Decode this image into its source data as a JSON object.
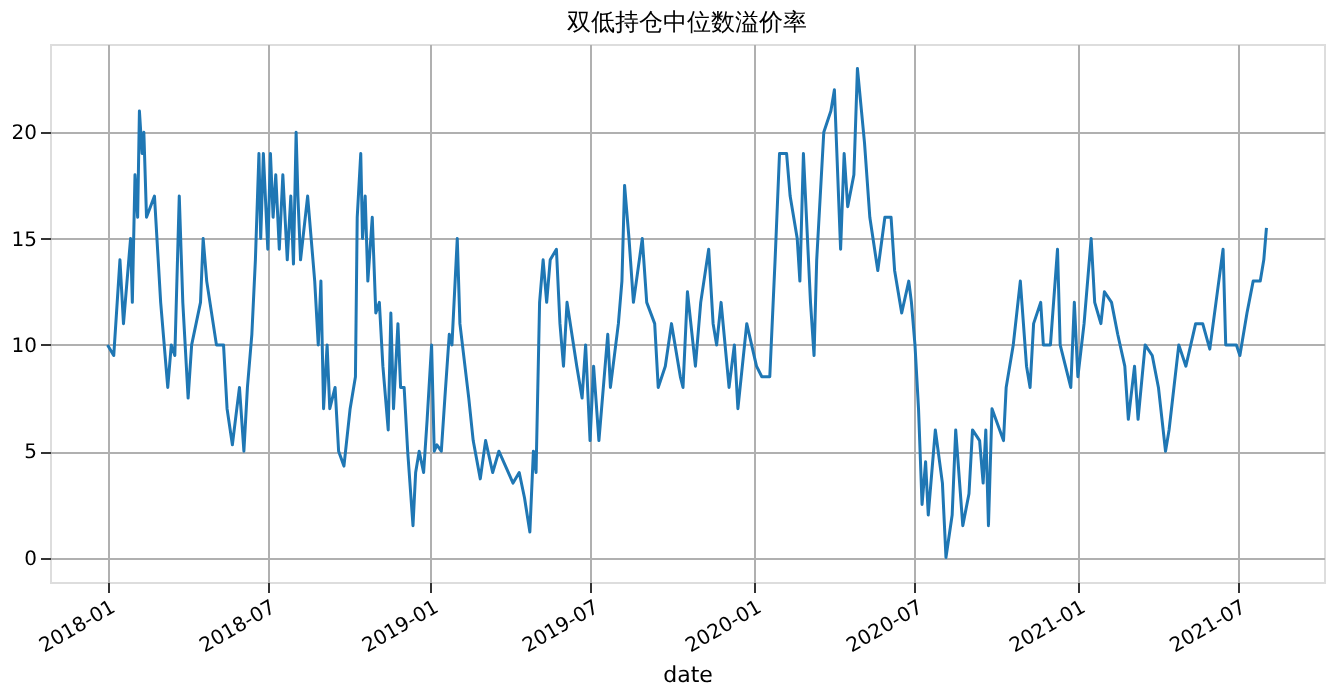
{
  "chart_data": {
    "type": "line",
    "title": "双低持仓中位数溢价率",
    "xlabel": "date",
    "xlim": [
      "2017-10-28",
      "2021-10-06"
    ],
    "ylim": [
      -1.15,
      24.15
    ],
    "xticks": [
      "2018-01",
      "2018-07",
      "2019-01",
      "2019-07",
      "2020-01",
      "2020-07",
      "2021-01",
      "2021-07"
    ],
    "yticks": [
      0,
      5,
      10,
      15,
      20
    ],
    "grid": true,
    "line_style": "solid",
    "marker": "none",
    "x": [
      "2018-01-01",
      "2018-01-08",
      "2018-01-15",
      "2018-01-19",
      "2018-01-27",
      "2018-01-29",
      "2018-02-01",
      "2018-02-04",
      "2018-02-06",
      "2018-02-09",
      "2018-02-11",
      "2018-02-14",
      "2018-02-23",
      "2018-03-02",
      "2018-03-10",
      "2018-03-14",
      "2018-03-18",
      "2018-03-23",
      "2018-03-27",
      "2018-04-02",
      "2018-04-06",
      "2018-04-16",
      "2018-04-19",
      "2018-04-23",
      "2018-05-04",
      "2018-05-12",
      "2018-05-16",
      "2018-05-22",
      "2018-05-27",
      "2018-05-30",
      "2018-06-04",
      "2018-06-08",
      "2018-06-13",
      "2018-06-17",
      "2018-06-21",
      "2018-06-23",
      "2018-06-26",
      "2018-07-01",
      "2018-07-04",
      "2018-07-07",
      "2018-07-10",
      "2018-07-14",
      "2018-07-18",
      "2018-07-23",
      "2018-07-27",
      "2018-07-30",
      "2018-08-02",
      "2018-08-04",
      "2018-08-07",
      "2018-08-15",
      "2018-08-23",
      "2018-08-27",
      "2018-08-30",
      "2018-09-02",
      "2018-09-06",
      "2018-09-09",
      "2018-09-15",
      "2018-09-19",
      "2018-09-25",
      "2018-10-02",
      "2018-10-08",
      "2018-10-10",
      "2018-10-14",
      "2018-10-16",
      "2018-10-19",
      "2018-10-22",
      "2018-10-27",
      "2018-10-31",
      "2018-11-04",
      "2018-11-08",
      "2018-11-14",
      "2018-11-17",
      "2018-11-20",
      "2018-11-25",
      "2018-11-28",
      "2018-12-02",
      "2018-12-06",
      "2018-12-12",
      "2018-12-15",
      "2018-12-19",
      "2018-12-24",
      "2018-12-28",
      "2019-01-02",
      "2019-01-05",
      "2019-01-08",
      "2019-01-13",
      "2019-01-17",
      "2019-01-22",
      "2019-01-25",
      "2019-01-31",
      "2019-02-03",
      "2019-02-13",
      "2019-02-18",
      "2019-02-26",
      "2019-03-04",
      "2019-03-12",
      "2019-03-19",
      "2019-04-04",
      "2019-04-11",
      "2019-04-17",
      "2019-04-23",
      "2019-04-27",
      "2019-04-30",
      "2019-05-04",
      "2019-05-08",
      "2019-05-12",
      "2019-05-16",
      "2019-05-23",
      "2019-05-27",
      "2019-05-31",
      "2019-06-04",
      "2019-06-15",
      "2019-06-21",
      "2019-06-25",
      "2019-06-30",
      "2019-07-04",
      "2019-07-10",
      "2019-07-20",
      "2019-07-23",
      "2019-08-01",
      "2019-08-05",
      "2019-08-08",
      "2019-08-13",
      "2019-08-18",
      "2019-08-28",
      "2019-09-02",
      "2019-09-11",
      "2019-09-15",
      "2019-09-23",
      "2019-09-30",
      "2019-10-10",
      "2019-10-13",
      "2019-10-18",
      "2019-10-27",
      "2019-11-02",
      "2019-11-11",
      "2019-11-16",
      "2019-11-20",
      "2019-11-25",
      "2019-12-04",
      "2019-12-10",
      "2019-12-14",
      "2019-12-24",
      "2020-01-04",
      "2020-01-10",
      "2020-01-19",
      "2020-01-25",
      "2020-01-30",
      "2020-02-07",
      "2020-02-11",
      "2020-02-19",
      "2020-02-22",
      "2020-02-26",
      "2020-03-05",
      "2020-03-09",
      "2020-03-12",
      "2020-03-20",
      "2020-03-28",
      "2020-04-01",
      "2020-04-08",
      "2020-04-12",
      "2020-04-16",
      "2020-04-23",
      "2020-04-27",
      "2020-05-05",
      "2020-05-11",
      "2020-05-20",
      "2020-05-28",
      "2020-06-04",
      "2020-06-08",
      "2020-06-16",
      "2020-06-24",
      "2020-06-27",
      "2020-07-01",
      "2020-07-05",
      "2020-07-09",
      "2020-07-13",
      "2020-07-16",
      "2020-07-24",
      "2020-08-01",
      "2020-08-05",
      "2020-08-12",
      "2020-08-16",
      "2020-08-24",
      "2020-08-31",
      "2020-09-04",
      "2020-09-12",
      "2020-09-16",
      "2020-09-19",
      "2020-09-22",
      "2020-09-26",
      "2020-10-09",
      "2020-10-12",
      "2020-10-20",
      "2020-10-28",
      "2020-11-04",
      "2020-11-08",
      "2020-11-12",
      "2020-11-20",
      "2020-11-23",
      "2020-12-01",
      "2020-12-09",
      "2020-12-12",
      "2020-12-24",
      "2020-12-28",
      "2021-01-01",
      "2021-01-08",
      "2021-01-16",
      "2021-01-20",
      "2021-01-27",
      "2021-01-31",
      "2021-02-08",
      "2021-02-15",
      "2021-02-23",
      "2021-02-27",
      "2021-03-06",
      "2021-03-10",
      "2021-03-18",
      "2021-03-26",
      "2021-04-02",
      "2021-04-10",
      "2021-04-14",
      "2021-04-25",
      "2021-05-03",
      "2021-05-14",
      "2021-05-22",
      "2021-05-30",
      "2021-06-06",
      "2021-06-14",
      "2021-06-17",
      "2021-06-29",
      "2021-07-03",
      "2021-07-11",
      "2021-07-18",
      "2021-07-26",
      "2021-07-30",
      "2021-08-02"
    ],
    "series": [
      {
        "color": "#1f77b4",
        "values": [
          10,
          9.5,
          14,
          11,
          15,
          12,
          18,
          16,
          21,
          19,
          20,
          16,
          17,
          12,
          8,
          10,
          9.5,
          17,
          12,
          7.5,
          10,
          12,
          15,
          13,
          10,
          10,
          7,
          5.3,
          7,
          8,
          5,
          8,
          10.5,
          14,
          19,
          15,
          19,
          14.5,
          19,
          16,
          18,
          14.5,
          18,
          14,
          17,
          13.8,
          20,
          17,
          14,
          17,
          13,
          10,
          13,
          7,
          10,
          7,
          8,
          5,
          4.3,
          7,
          8.5,
          16,
          19,
          15,
          17,
          13,
          16,
          11.5,
          12,
          9,
          6,
          11.5,
          7,
          11,
          8,
          8,
          5,
          1.5,
          4,
          5,
          4,
          6.5,
          10,
          5,
          5.3,
          5,
          7.5,
          10.5,
          10,
          15,
          11,
          7.5,
          5.5,
          3.7,
          5.5,
          4,
          5,
          3.5,
          4,
          2.8,
          1.2,
          5,
          4,
          12,
          14,
          12,
          14,
          14.5,
          11,
          9,
          12,
          9,
          7.5,
          10,
          5.5,
          9,
          5.5,
          10.5,
          8,
          11,
          13,
          17.5,
          15,
          12,
          15,
          12,
          11,
          8,
          9,
          11,
          8.5,
          8,
          12.5,
          9,
          12,
          14.5,
          11,
          10,
          12,
          8,
          10,
          7,
          11,
          9,
          8.5,
          8.5,
          14,
          19,
          19,
          17,
          15,
          13,
          19,
          12,
          9.5,
          14,
          20,
          21,
          22,
          14.5,
          19,
          16.5,
          18,
          23,
          19.5,
          16,
          13.5,
          16,
          16,
          13.5,
          11.5,
          13,
          12,
          10,
          7,
          2.5,
          4.5,
          2,
          6,
          3.5,
          0,
          2,
          6,
          1.5,
          3,
          6,
          5.5,
          3.5,
          6,
          1.5,
          7,
          5.5,
          8,
          10,
          13,
          9,
          8,
          11,
          12,
          10,
          10,
          14.5,
          10,
          8,
          12,
          8.5,
          11,
          15,
          12,
          11,
          12.5,
          12,
          10.5,
          9,
          6.5,
          9,
          6.5,
          10,
          9.5,
          8,
          5,
          6,
          10,
          9,
          11,
          11,
          9.8,
          12,
          14.5,
          10,
          10,
          9.5,
          11.5,
          13,
          13,
          14,
          15.5
        ]
      }
    ]
  }
}
